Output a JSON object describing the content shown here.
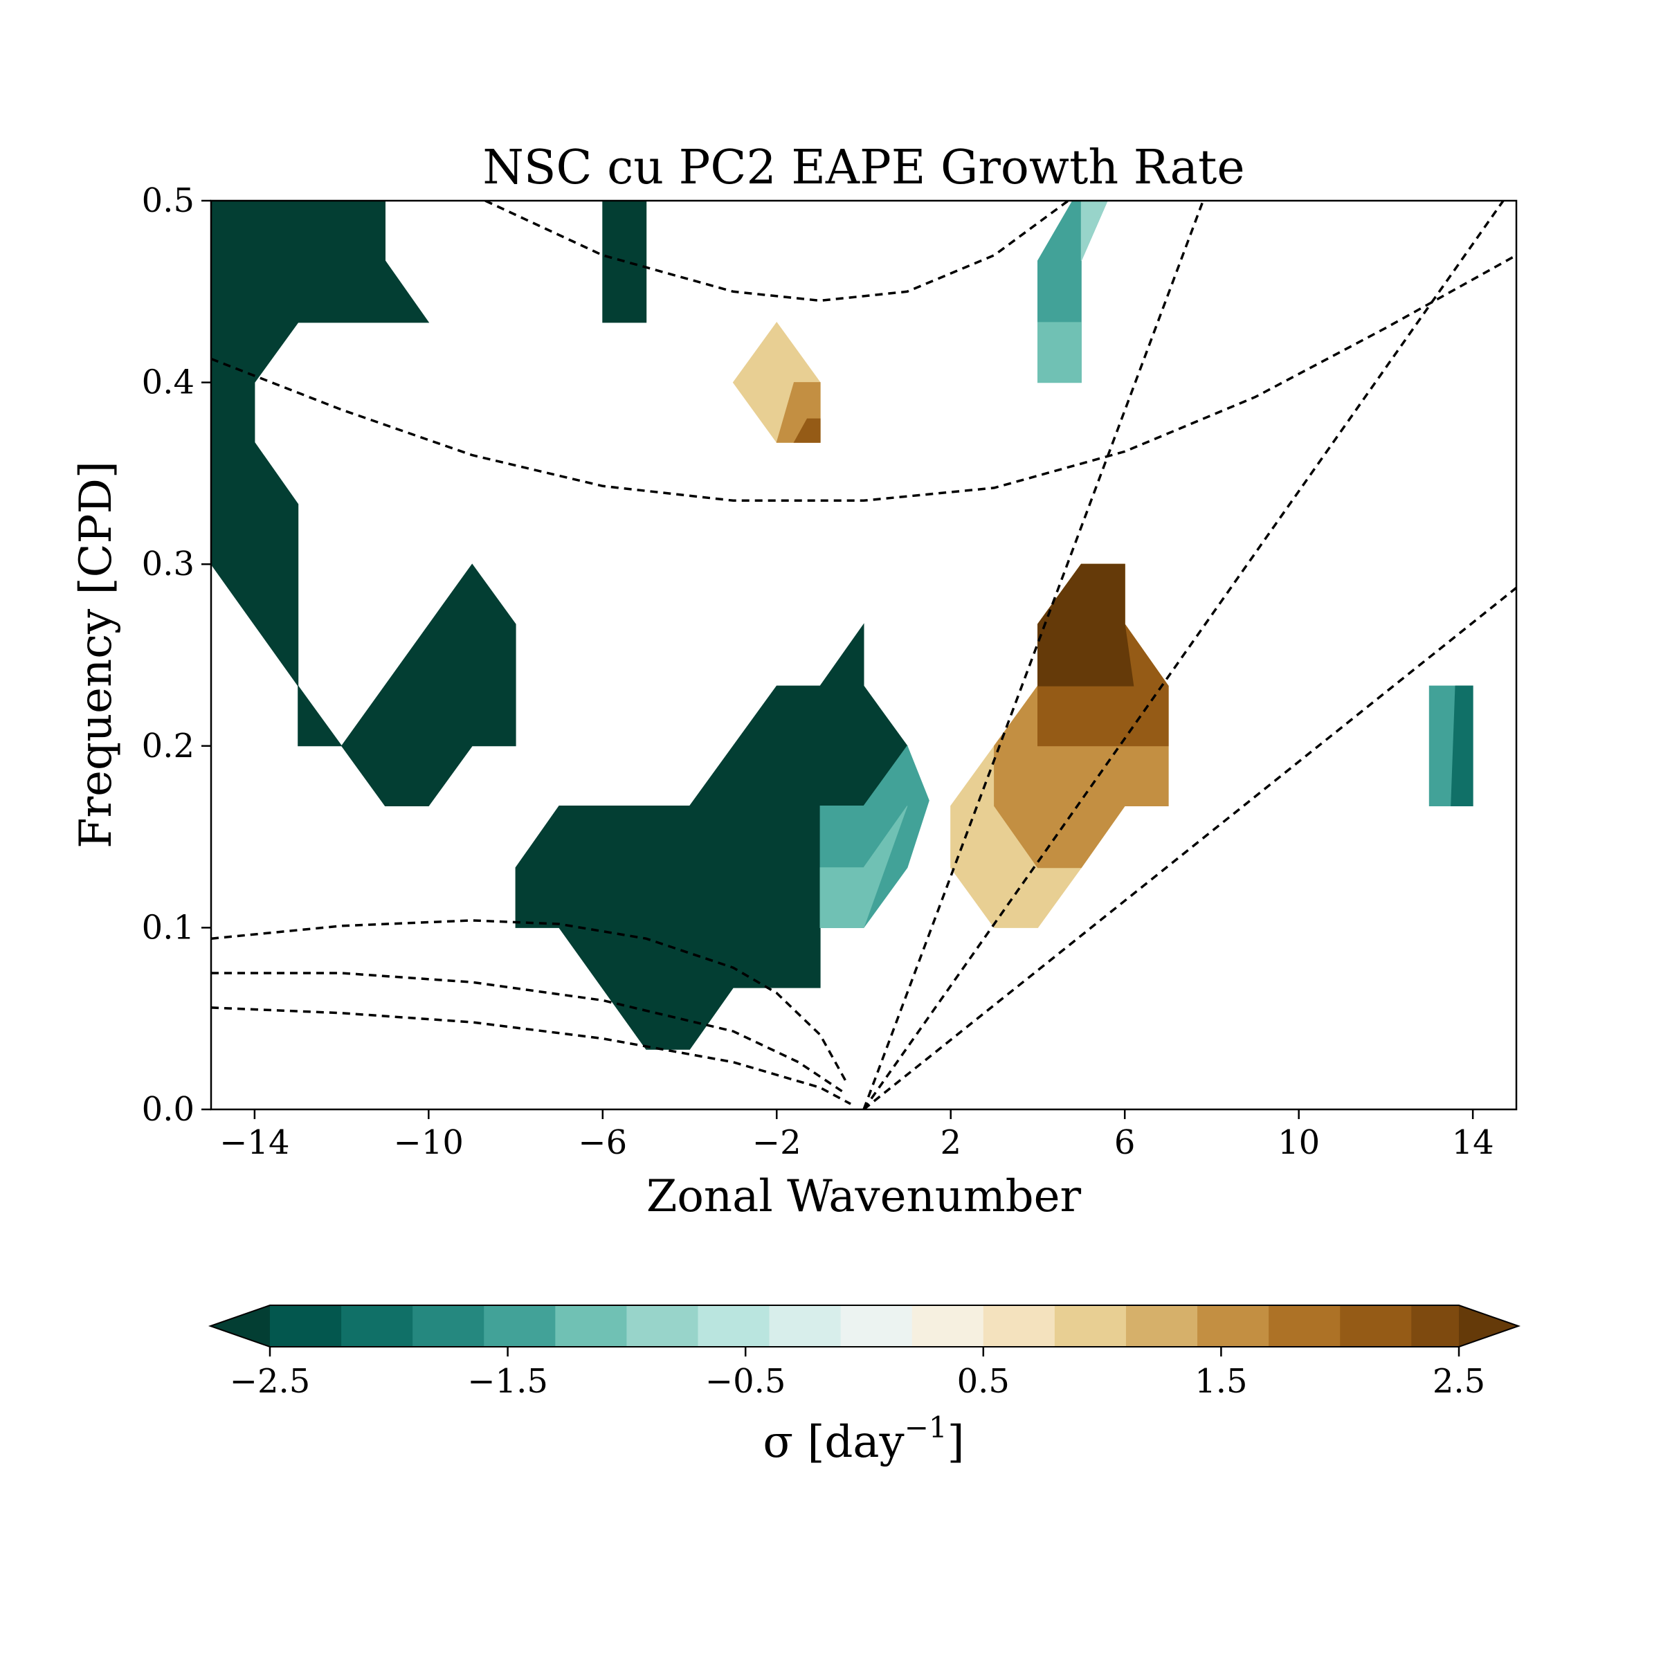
{
  "chart_data": {
    "type": "heatmap",
    "title": "NSC cu PC2 EAPE Growth Rate",
    "xlabel": "Zonal Wavenumber",
    "ylabel": "Frequency [CPD]",
    "xlim": [
      -15,
      15
    ],
    "ylim": [
      0,
      0.5
    ],
    "x_ticks": [
      -14,
      -10,
      -6,
      -2,
      2,
      6,
      10,
      14
    ],
    "x_tick_labels": [
      "−14",
      "−10",
      "−6",
      "−2",
      "2",
      "6",
      "10",
      "14"
    ],
    "y_ticks": [
      0.0,
      0.1,
      0.2,
      0.3,
      0.4,
      0.5
    ],
    "y_tick_labels": [
      "0.0",
      "0.1",
      "0.2",
      "0.3",
      "0.4",
      "0.5"
    ],
    "colorbar": {
      "label_prefix": "σ [day",
      "label_exponent": "−1",
      "label_suffix": "]",
      "levels": [
        -2.5,
        -2.2,
        -1.9,
        -1.6,
        -1.3,
        -1.0,
        -0.7,
        -0.4,
        -0.1,
        0.2,
        0.5,
        0.8,
        1.1,
        1.4,
        1.7,
        2.0,
        2.3,
        2.5
      ],
      "colors": [
        "#033e33",
        "#03574e",
        "#107067",
        "#25887f",
        "#42a298",
        "#70c1b4",
        "#98d4ca",
        "#bae5df",
        "#d8eeeb",
        "#ecf3f1",
        "#f6f0e0",
        "#f4e2be",
        "#e8cf93",
        "#d6b06a",
        "#c38f42",
        "#ad7226",
        "#955b16",
        "#7e4a0f",
        "#653a09"
      ],
      "ticks": [
        -2.5,
        -1.5,
        -0.5,
        0.5,
        1.5,
        2.5
      ],
      "tick_labels": [
        "−2.5",
        "−1.5",
        "−0.5",
        "0.5",
        "1.5",
        "2.5"
      ],
      "extend": "both"
    },
    "regions": [
      {
        "level": -2.5,
        "points": [
          [
            -15,
            0.5
          ],
          [
            -11,
            0.5
          ],
          [
            -11,
            0.467
          ],
          [
            -10,
            0.433
          ],
          [
            -13,
            0.433
          ],
          [
            -14,
            0.4
          ],
          [
            -14,
            0.367
          ],
          [
            -13,
            0.333
          ],
          [
            -13,
            0.233
          ],
          [
            -15,
            0.3
          ]
        ]
      },
      {
        "level": -2.5,
        "points": [
          [
            -13,
            0.233
          ],
          [
            -13,
            0.2
          ],
          [
            -12,
            0.2
          ]
        ]
      },
      {
        "level": -2.5,
        "points": [
          [
            -12,
            0.2
          ],
          [
            -9,
            0.3
          ],
          [
            -8,
            0.267
          ],
          [
            -8,
            0.2
          ],
          [
            -9,
            0.2
          ],
          [
            -10,
            0.167
          ],
          [
            -11,
            0.167
          ]
        ]
      },
      {
        "level": -2.5,
        "points": [
          [
            -6,
            0.5
          ],
          [
            -5,
            0.5
          ],
          [
            -5,
            0.433
          ],
          [
            -6,
            0.433
          ],
          [
            -6,
            0.467
          ]
        ]
      },
      {
        "level": -2.5,
        "points": [
          [
            -8,
            0.133
          ],
          [
            -7,
            0.167
          ],
          [
            -4,
            0.167
          ],
          [
            -2,
            0.233
          ],
          [
            -1,
            0.233
          ],
          [
            0,
            0.267
          ],
          [
            0,
            0.233
          ],
          [
            1,
            0.2
          ],
          [
            0,
            0.167
          ],
          [
            -1,
            0.1
          ],
          [
            -1,
            0.067
          ],
          [
            -3,
            0.067
          ],
          [
            -4,
            0.033
          ],
          [
            -5,
            0.033
          ],
          [
            -7,
            0.1
          ],
          [
            -8,
            0.1
          ]
        ]
      },
      {
        "level": -1.6,
        "points": [
          [
            -1,
            0.167
          ],
          [
            0,
            0.167
          ],
          [
            1,
            0.2
          ],
          [
            1.5,
            0.17
          ],
          [
            1,
            0.133
          ],
          [
            0,
            0.1
          ],
          [
            -1,
            0.1
          ]
        ]
      },
      {
        "level": -1.3,
        "points": [
          [
            -1,
            0.133
          ],
          [
            0,
            0.133
          ],
          [
            1,
            0.167
          ],
          [
            0,
            0.1
          ],
          [
            -1,
            0.1
          ]
        ]
      },
      {
        "level": -1.6,
        "points": [
          [
            4,
            0.467
          ],
          [
            4.8,
            0.5
          ],
          [
            5.6,
            0.5
          ],
          [
            5,
            0.467
          ],
          [
            5,
            0.4
          ],
          [
            4,
            0.4
          ]
        ]
      },
      {
        "level": -1.3,
        "points": [
          [
            4,
            0.433
          ],
          [
            5,
            0.433
          ],
          [
            5,
            0.4
          ],
          [
            4,
            0.4
          ]
        ]
      },
      {
        "level": -1.0,
        "points": [
          [
            5,
            0.5
          ],
          [
            5.6,
            0.5
          ],
          [
            5,
            0.467
          ]
        ]
      },
      {
        "level": -1.6,
        "points": [
          [
            13,
            0.233
          ],
          [
            14,
            0.233
          ],
          [
            14,
            0.167
          ],
          [
            13,
            0.167
          ]
        ]
      },
      {
        "level": -2.2,
        "points": [
          [
            13.6,
            0.233
          ],
          [
            14,
            0.233
          ],
          [
            14,
            0.167
          ],
          [
            13.5,
            0.167
          ]
        ]
      },
      {
        "level": 0.8,
        "points": [
          [
            -2,
            0.433
          ],
          [
            -1,
            0.4
          ],
          [
            -1,
            0.367
          ],
          [
            -2,
            0.367
          ],
          [
            -3,
            0.4
          ]
        ]
      },
      {
        "level": 1.4,
        "points": [
          [
            -1.6,
            0.4
          ],
          [
            -1,
            0.4
          ],
          [
            -1,
            0.367
          ],
          [
            -2,
            0.367
          ]
        ]
      },
      {
        "level": 2.0,
        "points": [
          [
            -1.3,
            0.38
          ],
          [
            -1,
            0.38
          ],
          [
            -1,
            0.367
          ],
          [
            -1.6,
            0.367
          ]
        ]
      },
      {
        "level": 0.8,
        "points": [
          [
            2,
            0.167
          ],
          [
            3,
            0.2
          ],
          [
            4,
            0.233
          ],
          [
            4,
            0.267
          ],
          [
            5,
            0.3
          ],
          [
            6,
            0.3
          ],
          [
            6,
            0.267
          ],
          [
            7,
            0.233
          ],
          [
            7,
            0.167
          ],
          [
            6,
            0.167
          ],
          [
            5,
            0.133
          ],
          [
            4,
            0.1
          ],
          [
            3,
            0.1
          ],
          [
            2,
            0.133
          ]
        ]
      },
      {
        "level": 1.4,
        "points": [
          [
            3,
            0.2
          ],
          [
            4,
            0.233
          ],
          [
            4,
            0.267
          ],
          [
            5,
            0.3
          ],
          [
            6,
            0.3
          ],
          [
            6,
            0.267
          ],
          [
            7,
            0.233
          ],
          [
            7,
            0.167
          ],
          [
            6,
            0.167
          ],
          [
            5,
            0.133
          ],
          [
            4,
            0.133
          ],
          [
            3,
            0.167
          ]
        ]
      },
      {
        "level": 2.0,
        "points": [
          [
            4,
            0.233
          ],
          [
            4,
            0.267
          ],
          [
            5,
            0.3
          ],
          [
            6,
            0.3
          ],
          [
            6,
            0.267
          ],
          [
            7,
            0.233
          ],
          [
            7,
            0.2
          ],
          [
            6,
            0.2
          ],
          [
            5,
            0.2
          ],
          [
            4,
            0.2
          ]
        ]
      },
      {
        "level": 2.5,
        "points": [
          [
            4,
            0.267
          ],
          [
            5,
            0.3
          ],
          [
            6,
            0.3
          ],
          [
            6,
            0.267
          ],
          [
            6.2,
            0.233
          ],
          [
            5,
            0.233
          ],
          [
            4,
            0.233
          ]
        ]
      }
    ],
    "dispersion_curves": [
      [
        [
          -8.7,
          0.5
        ],
        [
          -6,
          0.47
        ],
        [
          -3,
          0.45
        ],
        [
          -1,
          0.445
        ],
        [
          1,
          0.45
        ],
        [
          3,
          0.47
        ],
        [
          4.7,
          0.5
        ]
      ],
      [
        [
          -15,
          0.413
        ],
        [
          -12,
          0.385
        ],
        [
          -9,
          0.36
        ],
        [
          -6,
          0.343
        ],
        [
          -3,
          0.335
        ],
        [
          0,
          0.335
        ],
        [
          3,
          0.342
        ],
        [
          6,
          0.362
        ],
        [
          9,
          0.392
        ],
        [
          12,
          0.43
        ],
        [
          15,
          0.47
        ]
      ],
      [
        [
          -15,
          0.094
        ],
        [
          -12,
          0.101
        ],
        [
          -9,
          0.104
        ],
        [
          -7,
          0.102
        ],
        [
          -5,
          0.094
        ],
        [
          -3,
          0.078
        ],
        [
          -2,
          0.064
        ],
        [
          -1,
          0.041
        ],
        [
          -0.4,
          0.015
        ]
      ],
      [
        [
          -15,
          0.075
        ],
        [
          -12,
          0.075
        ],
        [
          -9,
          0.07
        ],
        [
          -6,
          0.06
        ],
        [
          -3,
          0.043
        ],
        [
          -1.5,
          0.026
        ],
        [
          -0.5,
          0.01
        ]
      ],
      [
        [
          -15,
          0.056
        ],
        [
          -12,
          0.053
        ],
        [
          -9,
          0.048
        ],
        [
          -6,
          0.039
        ],
        [
          -3,
          0.026
        ],
        [
          -1,
          0.012
        ],
        [
          -0.3,
          0.003
        ]
      ],
      [
        [
          0,
          0
        ],
        [
          7.8,
          0.5
        ]
      ],
      [
        [
          0,
          0
        ],
        [
          14.7,
          0.5
        ]
      ],
      [
        [
          0,
          0
        ],
        [
          15,
          0.287
        ]
      ]
    ]
  }
}
